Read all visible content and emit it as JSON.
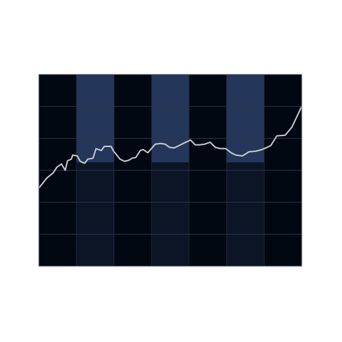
{
  "chart_data": {
    "type": "line",
    "title": "",
    "xlabel": "",
    "ylabel": "",
    "xlim": [
      0,
      7
    ],
    "ylim": [
      0,
      6
    ],
    "grid": true,
    "legend": "none",
    "background_color": "#020812",
    "band_dark_color": "#020812",
    "band_light_color": "#0b1526",
    "band_highlight_color": "#24375a",
    "line_color": "#c8ccd3",
    "grid_color": "#2c3548",
    "highlight_columns": [
      1,
      3,
      5
    ],
    "highlight_ylim": [
      3.25,
      6
    ],
    "series": [
      {
        "x": [
          0,
          0.2,
          0.38,
          0.48,
          0.6,
          0.7,
          0.76,
          0.86,
          0.9,
          1.02,
          1.1,
          1.22,
          1.3,
          1.44,
          1.52,
          1.66,
          1.74,
          1.92,
          2.0,
          2.06,
          2.16,
          2.28,
          2.4,
          2.48,
          2.58,
          2.7,
          2.78,
          2.9,
          3.1,
          3.24,
          3.36,
          3.48,
          3.6,
          3.74,
          3.86,
          4.04,
          4.16,
          4.28,
          4.42,
          4.56,
          4.7,
          4.84,
          4.98,
          5.12,
          5.24,
          5.42,
          5.6,
          5.78,
          5.94,
          6.08,
          6.18,
          6.34,
          6.56,
          6.74,
          7.0
        ],
        "y": [
          2.45,
          2.75,
          2.92,
          3.1,
          3.2,
          3.0,
          3.3,
          3.35,
          3.48,
          3.45,
          3.28,
          3.22,
          3.35,
          3.38,
          3.68,
          3.62,
          3.75,
          3.75,
          3.58,
          3.5,
          3.35,
          3.28,
          3.32,
          3.38,
          3.4,
          3.62,
          3.65,
          3.55,
          3.82,
          3.84,
          3.82,
          3.72,
          3.7,
          3.78,
          3.85,
          3.95,
          3.8,
          3.8,
          3.82,
          3.88,
          3.72,
          3.68,
          3.68,
          3.55,
          3.48,
          3.45,
          3.58,
          3.6,
          3.65,
          3.72,
          3.78,
          4.08,
          4.1,
          4.35,
          5.0
        ]
      }
    ]
  }
}
